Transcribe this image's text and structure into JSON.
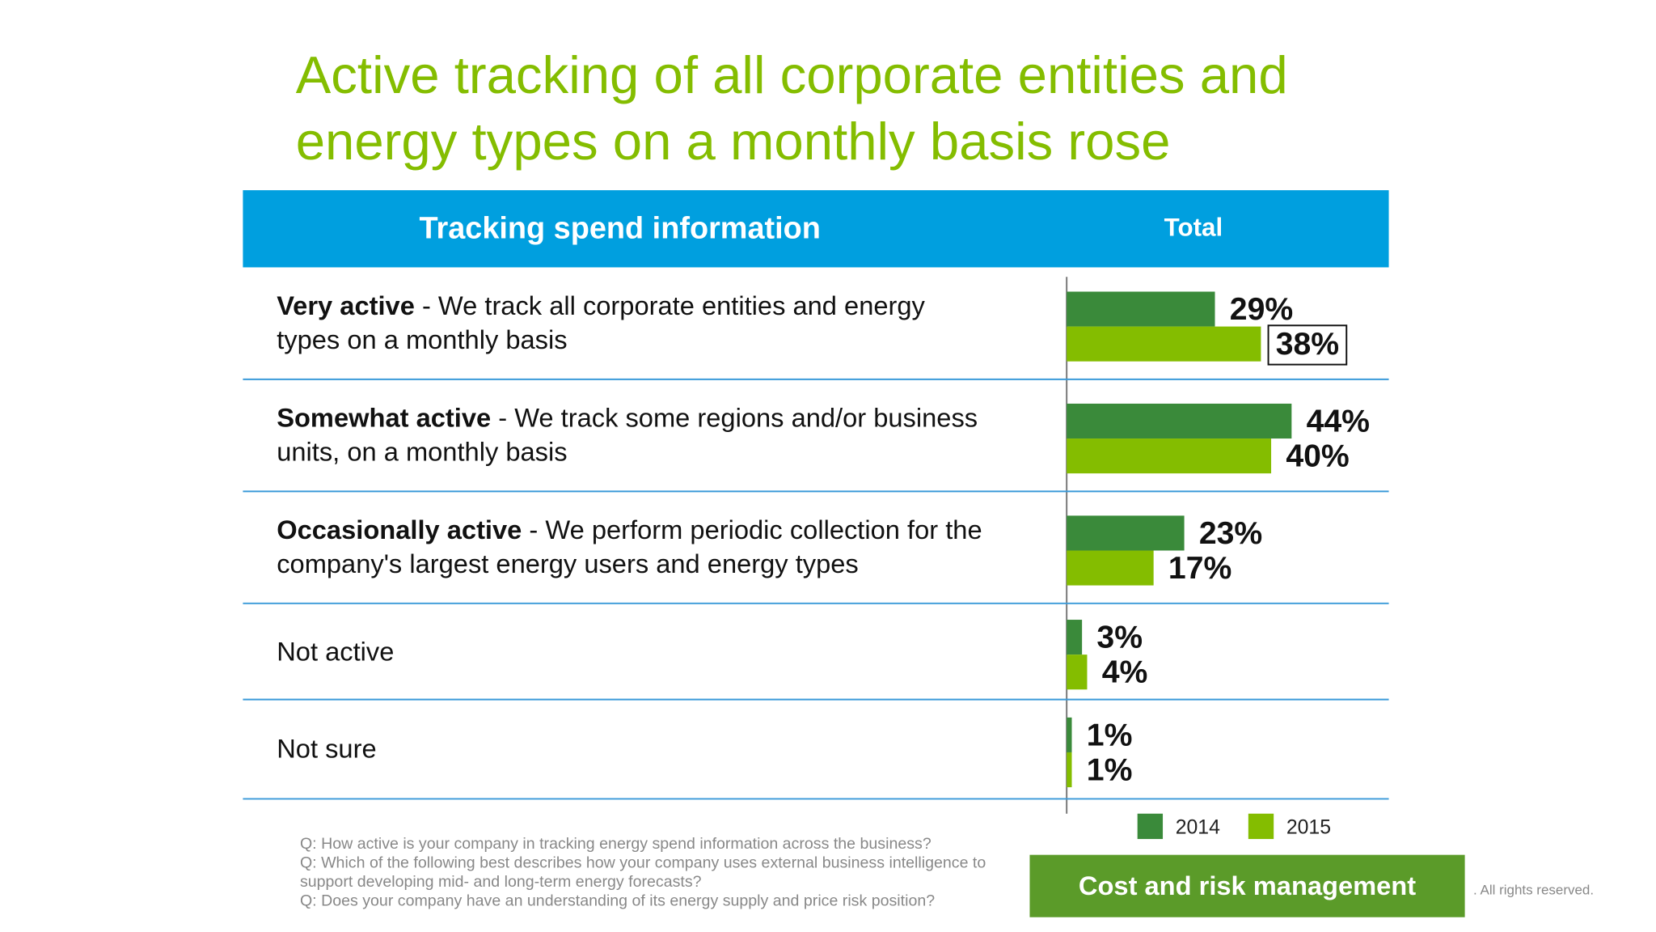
{
  "title": "Active tracking of all corporate entities and energy types on a monthly basis rose",
  "header": {
    "left": "Tracking spend information",
    "right": "Total"
  },
  "chart_data": {
    "type": "bar",
    "orientation": "horizontal",
    "categories": [
      {
        "bold": "Very active",
        "text": "- We track all corporate entities and energy types on a monthly basis"
      },
      {
        "bold": "Somewhat active",
        "text": "- We track some regions and/or business units, on a monthly basis"
      },
      {
        "bold": "Occasionally active",
        "text": "- We perform periodic collection for the company's largest energy users and energy types"
      },
      {
        "text": "Not active"
      },
      {
        "text": "Not sure"
      }
    ],
    "series": [
      {
        "name": "2014",
        "color": "#3a8a3a",
        "values": [
          29,
          44,
          23,
          3,
          1
        ],
        "value_labels": [
          "29%",
          "44%",
          "23%",
          "3%",
          "1%"
        ]
      },
      {
        "name": "2015",
        "color": "#84bd00",
        "values": [
          38,
          40,
          17,
          4,
          1
        ],
        "value_labels": [
          "38%",
          "40%",
          "17%",
          "4%",
          "1%"
        ]
      }
    ],
    "highlight": {
      "series": 1,
      "index": 0
    }
  },
  "footnotes": [
    "Q: How active is your company in tracking energy spend information across the business?",
    "Q: Which of the following best describes how your company uses external business intelligence to support developing mid- and long-term energy forecasts?",
    "Q: Does your company have an understanding of its energy supply and price risk position?"
  ],
  "button": "Cost and risk management",
  "copyright": ". All rights reserved."
}
